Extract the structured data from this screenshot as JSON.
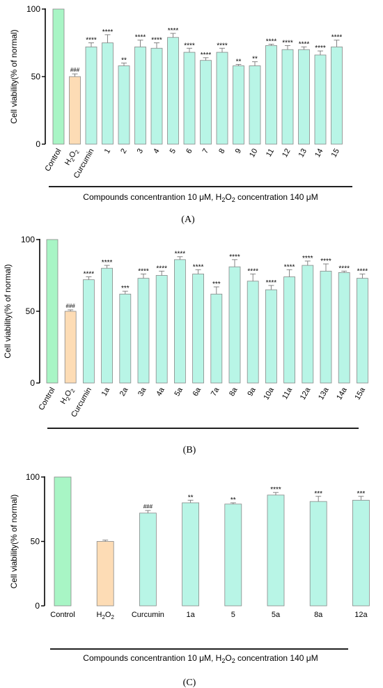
{
  "figure": {
    "panel_labels": [
      "(A)",
      "(B)",
      "(C)"
    ],
    "footer_text_main": "Compounds concentrantion 10 μM, H",
    "footer_text_sub": "2",
    "footer_text_o": "O",
    "footer_text_rest": " concentration 140  μM"
  },
  "colors": {
    "control": "#a8f5c5",
    "h2o2": "#fddcb5",
    "compound": "#b8f5e6",
    "bar_stroke": "#888888"
  },
  "chart_data": [
    {
      "type": "bar",
      "ylabel": "Cell viability(% of normal)",
      "ylim": [
        0,
        100
      ],
      "yticks": [
        0,
        50,
        100
      ],
      "categories": [
        "Control",
        "H2O2",
        "Curcumin",
        "1",
        "2",
        "3",
        "4",
        "5",
        "6",
        "7",
        "8",
        "9",
        "10",
        "11",
        "12",
        "13",
        "14",
        "15"
      ],
      "values": [
        100,
        50,
        72,
        75,
        58,
        72,
        71,
        79,
        68,
        62,
        68,
        58,
        58,
        73,
        70,
        70,
        66,
        72
      ],
      "errors": [
        0,
        2,
        3,
        6,
        2,
        5,
        4,
        3,
        3,
        2,
        3,
        1,
        3,
        1,
        3,
        2,
        3,
        5
      ],
      "annotations": [
        "",
        "###",
        "****",
        "****",
        "**",
        "****",
        "****",
        "****",
        "****",
        "****",
        "****",
        "**",
        "**",
        "****",
        "****",
        "****",
        "****",
        "****"
      ],
      "footer": "Compounds concentrantion 10 μM, H2O2 concentration 140  μM"
    },
    {
      "type": "bar",
      "ylabel": "Cell viability(% of normal)",
      "ylim": [
        0,
        100
      ],
      "yticks": [
        0,
        50,
        100
      ],
      "categories": [
        "Control",
        "H2O2",
        "Curcumin",
        "1a",
        "2a",
        "3a",
        "4a",
        "5a",
        "6a",
        "7a",
        "8a",
        "9a",
        "10a",
        "11a",
        "12a",
        "13a",
        "14a",
        "15a"
      ],
      "values": [
        100,
        50,
        72,
        80,
        62,
        73,
        75,
        86,
        76,
        62,
        81,
        71,
        65,
        74,
        82,
        78,
        77,
        73
      ],
      "errors": [
        0,
        1,
        2,
        2,
        2,
        3,
        3,
        2,
        3,
        5,
        5,
        5,
        3,
        5,
        3,
        5,
        1,
        3
      ],
      "annotations": [
        "",
        "###",
        "****",
        "****",
        "***",
        "****",
        "****",
        "****",
        "****",
        "***",
        "****",
        "****",
        "****",
        "****",
        "****",
        "****",
        "****",
        "****"
      ],
      "footer": ""
    },
    {
      "type": "bar",
      "ylabel": "Cell viability(% of normal)",
      "ylim": [
        0,
        100
      ],
      "yticks": [
        0,
        50,
        100
      ],
      "categories": [
        "Control",
        "H2O2",
        "Curcumin",
        "1a",
        "5",
        "5a",
        "8a",
        "12a"
      ],
      "values": [
        100,
        50,
        72,
        80,
        79,
        86,
        81,
        82
      ],
      "errors": [
        0,
        1,
        2,
        2,
        1,
        2,
        4,
        3
      ],
      "annotations": [
        "",
        "",
        "###",
        "**",
        "**",
        "****",
        "***",
        "***"
      ],
      "footer": "Compounds concentrantion 10 μM, H2O2 concentration 140  μM"
    }
  ]
}
